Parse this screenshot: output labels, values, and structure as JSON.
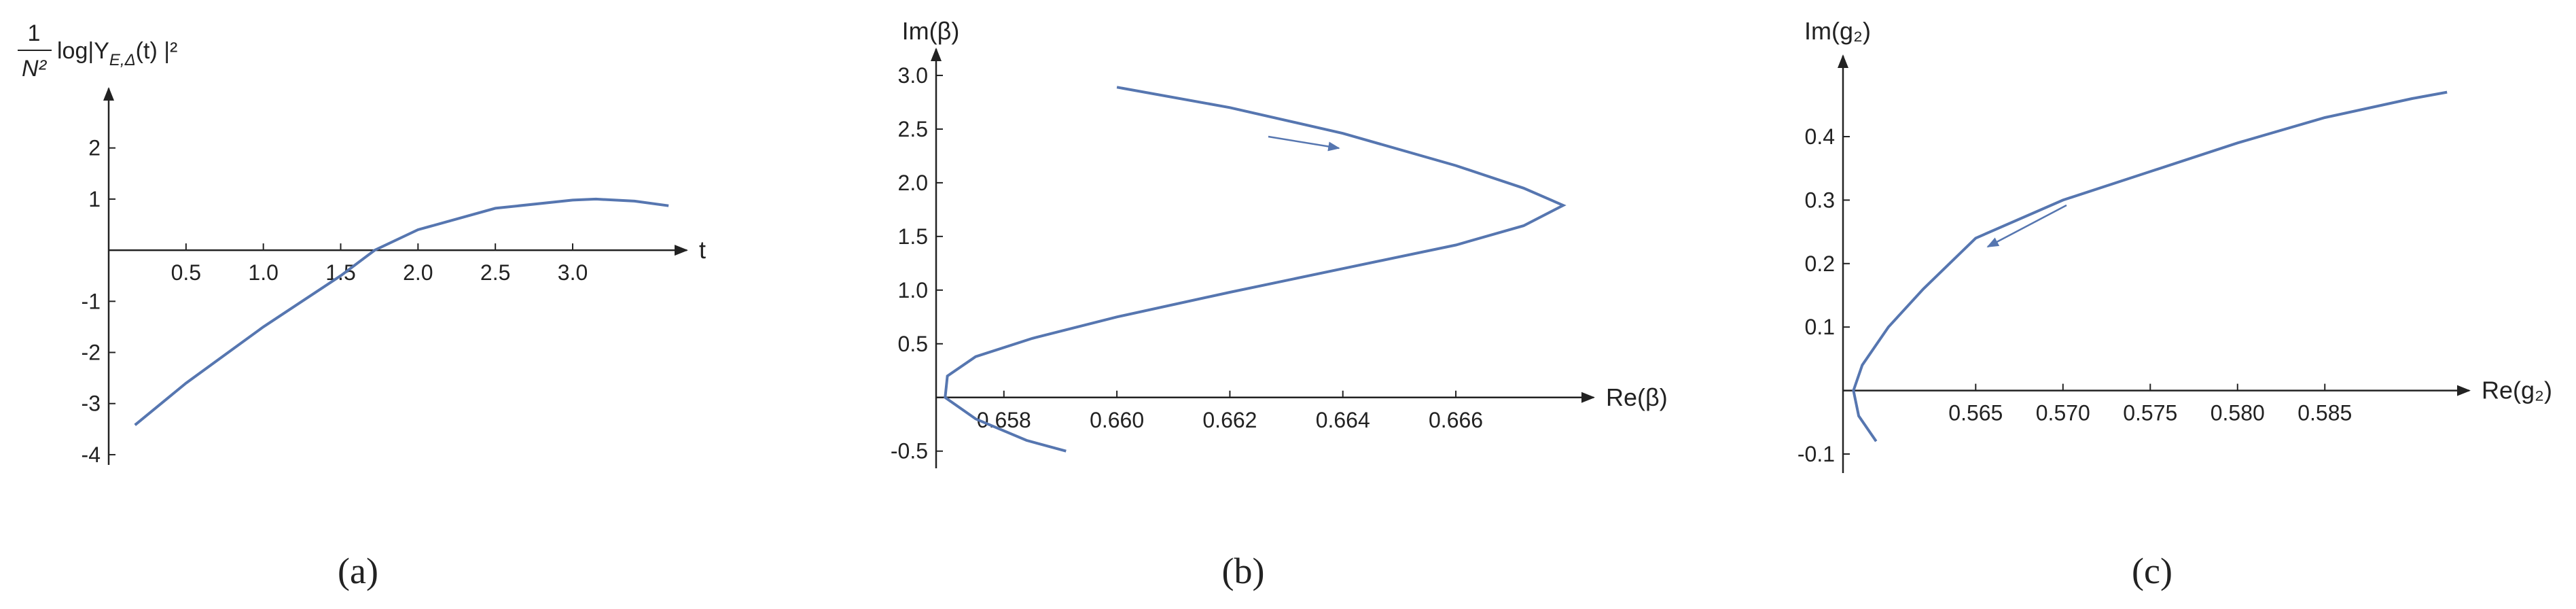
{
  "chart_data": [
    {
      "type": "line",
      "caption": "(a)",
      "x_label": "t",
      "y_label": {
        "numerator": "1",
        "denominator": "N²",
        "text": "log|Y",
        "subscript": "E,Δ",
        "suffix": "(t) |²"
      },
      "color": "#5676b0",
      "x": [
        0.17,
        0.5,
        1.0,
        1.5,
        1.72,
        2.0,
        2.5,
        3.0,
        3.15,
        3.4,
        3.62
      ],
      "values": [
        -3.42,
        -2.6,
        -1.5,
        -0.5,
        0,
        0.4,
        0.82,
        0.98,
        1.0,
        0.96,
        0.87
      ],
      "xlim": [
        0,
        3.65
      ],
      "ylim": [
        -4.2,
        2.9
      ],
      "xticks": [
        0.5,
        {
          "value": 1.0,
          "label": "1.0"
        },
        1.5,
        {
          "value": 2.0,
          "label": "2.0"
        },
        2.5,
        {
          "value": 3.0,
          "label": "3.0"
        }
      ],
      "yticks": [
        -4,
        -3,
        -2,
        -1,
        1,
        2
      ]
    },
    {
      "type": "line",
      "caption": "(b)",
      "x_label": "Re(β)",
      "y_label": {
        "text": "Im(β)"
      },
      "color": "#5676b0",
      "x": [
        0.66,
        0.662,
        0.664,
        0.666,
        0.6672,
        0.6679,
        0.6672,
        0.666,
        0.664,
        0.662,
        0.66,
        0.6585,
        0.6575,
        0.657,
        0.65696,
        0.6575,
        0.6584,
        0.6591
      ],
      "values": [
        2.89,
        2.7,
        2.46,
        2.16,
        1.95,
        1.79,
        1.6,
        1.42,
        1.2,
        0.98,
        0.75,
        0.55,
        0.38,
        0.2,
        0,
        -0.2,
        -0.4,
        -0.5
      ],
      "xlim": [
        0.6568,
        0.6682
      ],
      "ylim": [
        -0.66,
        3.12
      ],
      "xticks": [
        0.658,
        {
          "value": 0.66,
          "label": "0.660"
        },
        0.662,
        0.664,
        0.666
      ],
      "yticks": [
        -0.5,
        0.5,
        {
          "value": 1.0,
          "label": "1.0"
        },
        1.5,
        {
          "value": 2.0,
          "label": "2.0"
        },
        2.5,
        {
          "value": 3.0,
          "label": "3.0"
        }
      ]
    },
    {
      "type": "line",
      "caption": "(c)",
      "x_label": "Re(g₂)",
      "y_label": {
        "text": "Im(g₂)"
      },
      "color": "#5676b0",
      "x": [
        0.5593,
        0.5583,
        0.558,
        0.5585,
        0.56,
        0.562,
        0.565,
        0.57,
        0.575,
        0.58,
        0.585,
        0.59,
        0.592
      ],
      "values": [
        -0.08,
        -0.04,
        0,
        0.04,
        0.1,
        0.16,
        0.24,
        0.3,
        0.345,
        0.39,
        0.43,
        0.46,
        0.47
      ],
      "xlim": [
        0.5574,
        0.5925
      ],
      "ylim": [
        -0.13,
        0.506
      ],
      "xticks": [
        0.565,
        {
          "value": 0.57,
          "label": "0.570"
        },
        0.575,
        {
          "value": 0.58,
          "label": "0.580"
        },
        0.585
      ],
      "yticks": [
        -0.1,
        0.1,
        0.2,
        0.3,
        0.4
      ]
    }
  ]
}
